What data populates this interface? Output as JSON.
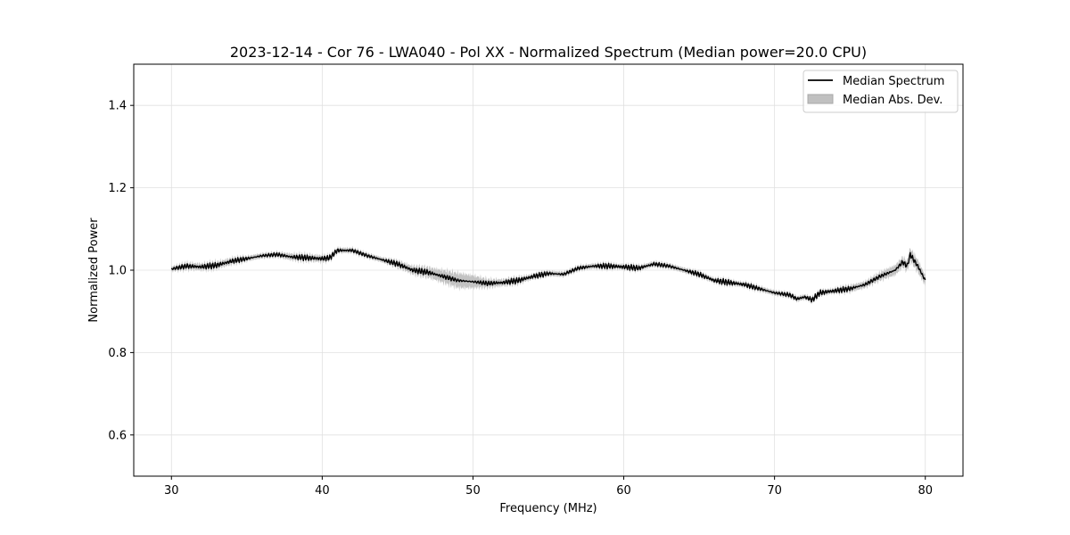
{
  "chart_data": {
    "type": "line",
    "title": "2023-12-14 - Cor 76 - LWA040 - Pol XX - Normalized Spectrum (Median power=20.0 CPU)",
    "xlabel": "Frequency (MHz)",
    "ylabel": "Normalized Power",
    "xlim": [
      27.5,
      82.5
    ],
    "ylim": [
      0.5,
      1.5
    ],
    "xticks": [
      30,
      40,
      50,
      60,
      70,
      80
    ],
    "yticks": [
      0.6,
      0.8,
      1.0,
      1.2,
      1.4
    ],
    "xtick_labels": [
      "30",
      "40",
      "50",
      "60",
      "70",
      "80"
    ],
    "ytick_labels": [
      "0.6",
      "0.8",
      "1.0",
      "1.2",
      "1.4"
    ],
    "grid": true,
    "legend_position": "top-right",
    "series": [
      {
        "name": "Median Spectrum",
        "kind": "line",
        "color": "#000000",
        "x": [
          30,
          31,
          32,
          33,
          34,
          35,
          36,
          37,
          38,
          39,
          40,
          40.5,
          41,
          42,
          43,
          44,
          45,
          46,
          47,
          48,
          49,
          50,
          51,
          52,
          53,
          54,
          55,
          56,
          57,
          58,
          59,
          60,
          61,
          62,
          63,
          64,
          65,
          66,
          67,
          68,
          69,
          70,
          71,
          71.5,
          72,
          72.5,
          73,
          74,
          75,
          76,
          77,
          78,
          78.5,
          78.8,
          79,
          79.5,
          80
        ],
        "y": [
          1.003,
          1.01,
          1.008,
          1.012,
          1.022,
          1.028,
          1.035,
          1.038,
          1.032,
          1.03,
          1.028,
          1.03,
          1.048,
          1.048,
          1.035,
          1.025,
          1.015,
          1.0,
          0.995,
          0.985,
          0.975,
          0.972,
          0.968,
          0.97,
          0.975,
          0.985,
          0.992,
          0.99,
          1.005,
          1.01,
          1.01,
          1.008,
          1.005,
          1.015,
          1.01,
          1.0,
          0.99,
          0.975,
          0.97,
          0.965,
          0.955,
          0.945,
          0.94,
          0.93,
          0.935,
          0.928,
          0.945,
          0.95,
          0.955,
          0.965,
          0.985,
          1.0,
          1.02,
          1.01,
          1.038,
          1.01,
          0.975
        ]
      },
      {
        "name": "Median Abs. Dev.",
        "kind": "band",
        "color": "#c0c0c0",
        "x": [
          30,
          31,
          32,
          33,
          34,
          35,
          36,
          37,
          38,
          39,
          40,
          40.5,
          41,
          42,
          43,
          44,
          45,
          46,
          47,
          48,
          49,
          50,
          51,
          52,
          53,
          54,
          55,
          56,
          57,
          58,
          59,
          60,
          61,
          62,
          63,
          64,
          65,
          66,
          67,
          68,
          69,
          70,
          71,
          71.5,
          72,
          72.5,
          73,
          74,
          75,
          76,
          77,
          78,
          78.5,
          78.8,
          79,
          79.5,
          80
        ],
        "dev": [
          0.006,
          0.008,
          0.008,
          0.008,
          0.008,
          0.006,
          0.006,
          0.006,
          0.008,
          0.008,
          0.008,
          0.006,
          0.006,
          0.006,
          0.006,
          0.006,
          0.008,
          0.01,
          0.012,
          0.015,
          0.018,
          0.015,
          0.01,
          0.008,
          0.008,
          0.006,
          0.006,
          0.006,
          0.006,
          0.006,
          0.006,
          0.006,
          0.006,
          0.006,
          0.006,
          0.006,
          0.006,
          0.006,
          0.006,
          0.006,
          0.006,
          0.006,
          0.006,
          0.006,
          0.006,
          0.006,
          0.006,
          0.006,
          0.008,
          0.008,
          0.01,
          0.012,
          0.012,
          0.012,
          0.015,
          0.015,
          0.012
        ]
      }
    ]
  }
}
